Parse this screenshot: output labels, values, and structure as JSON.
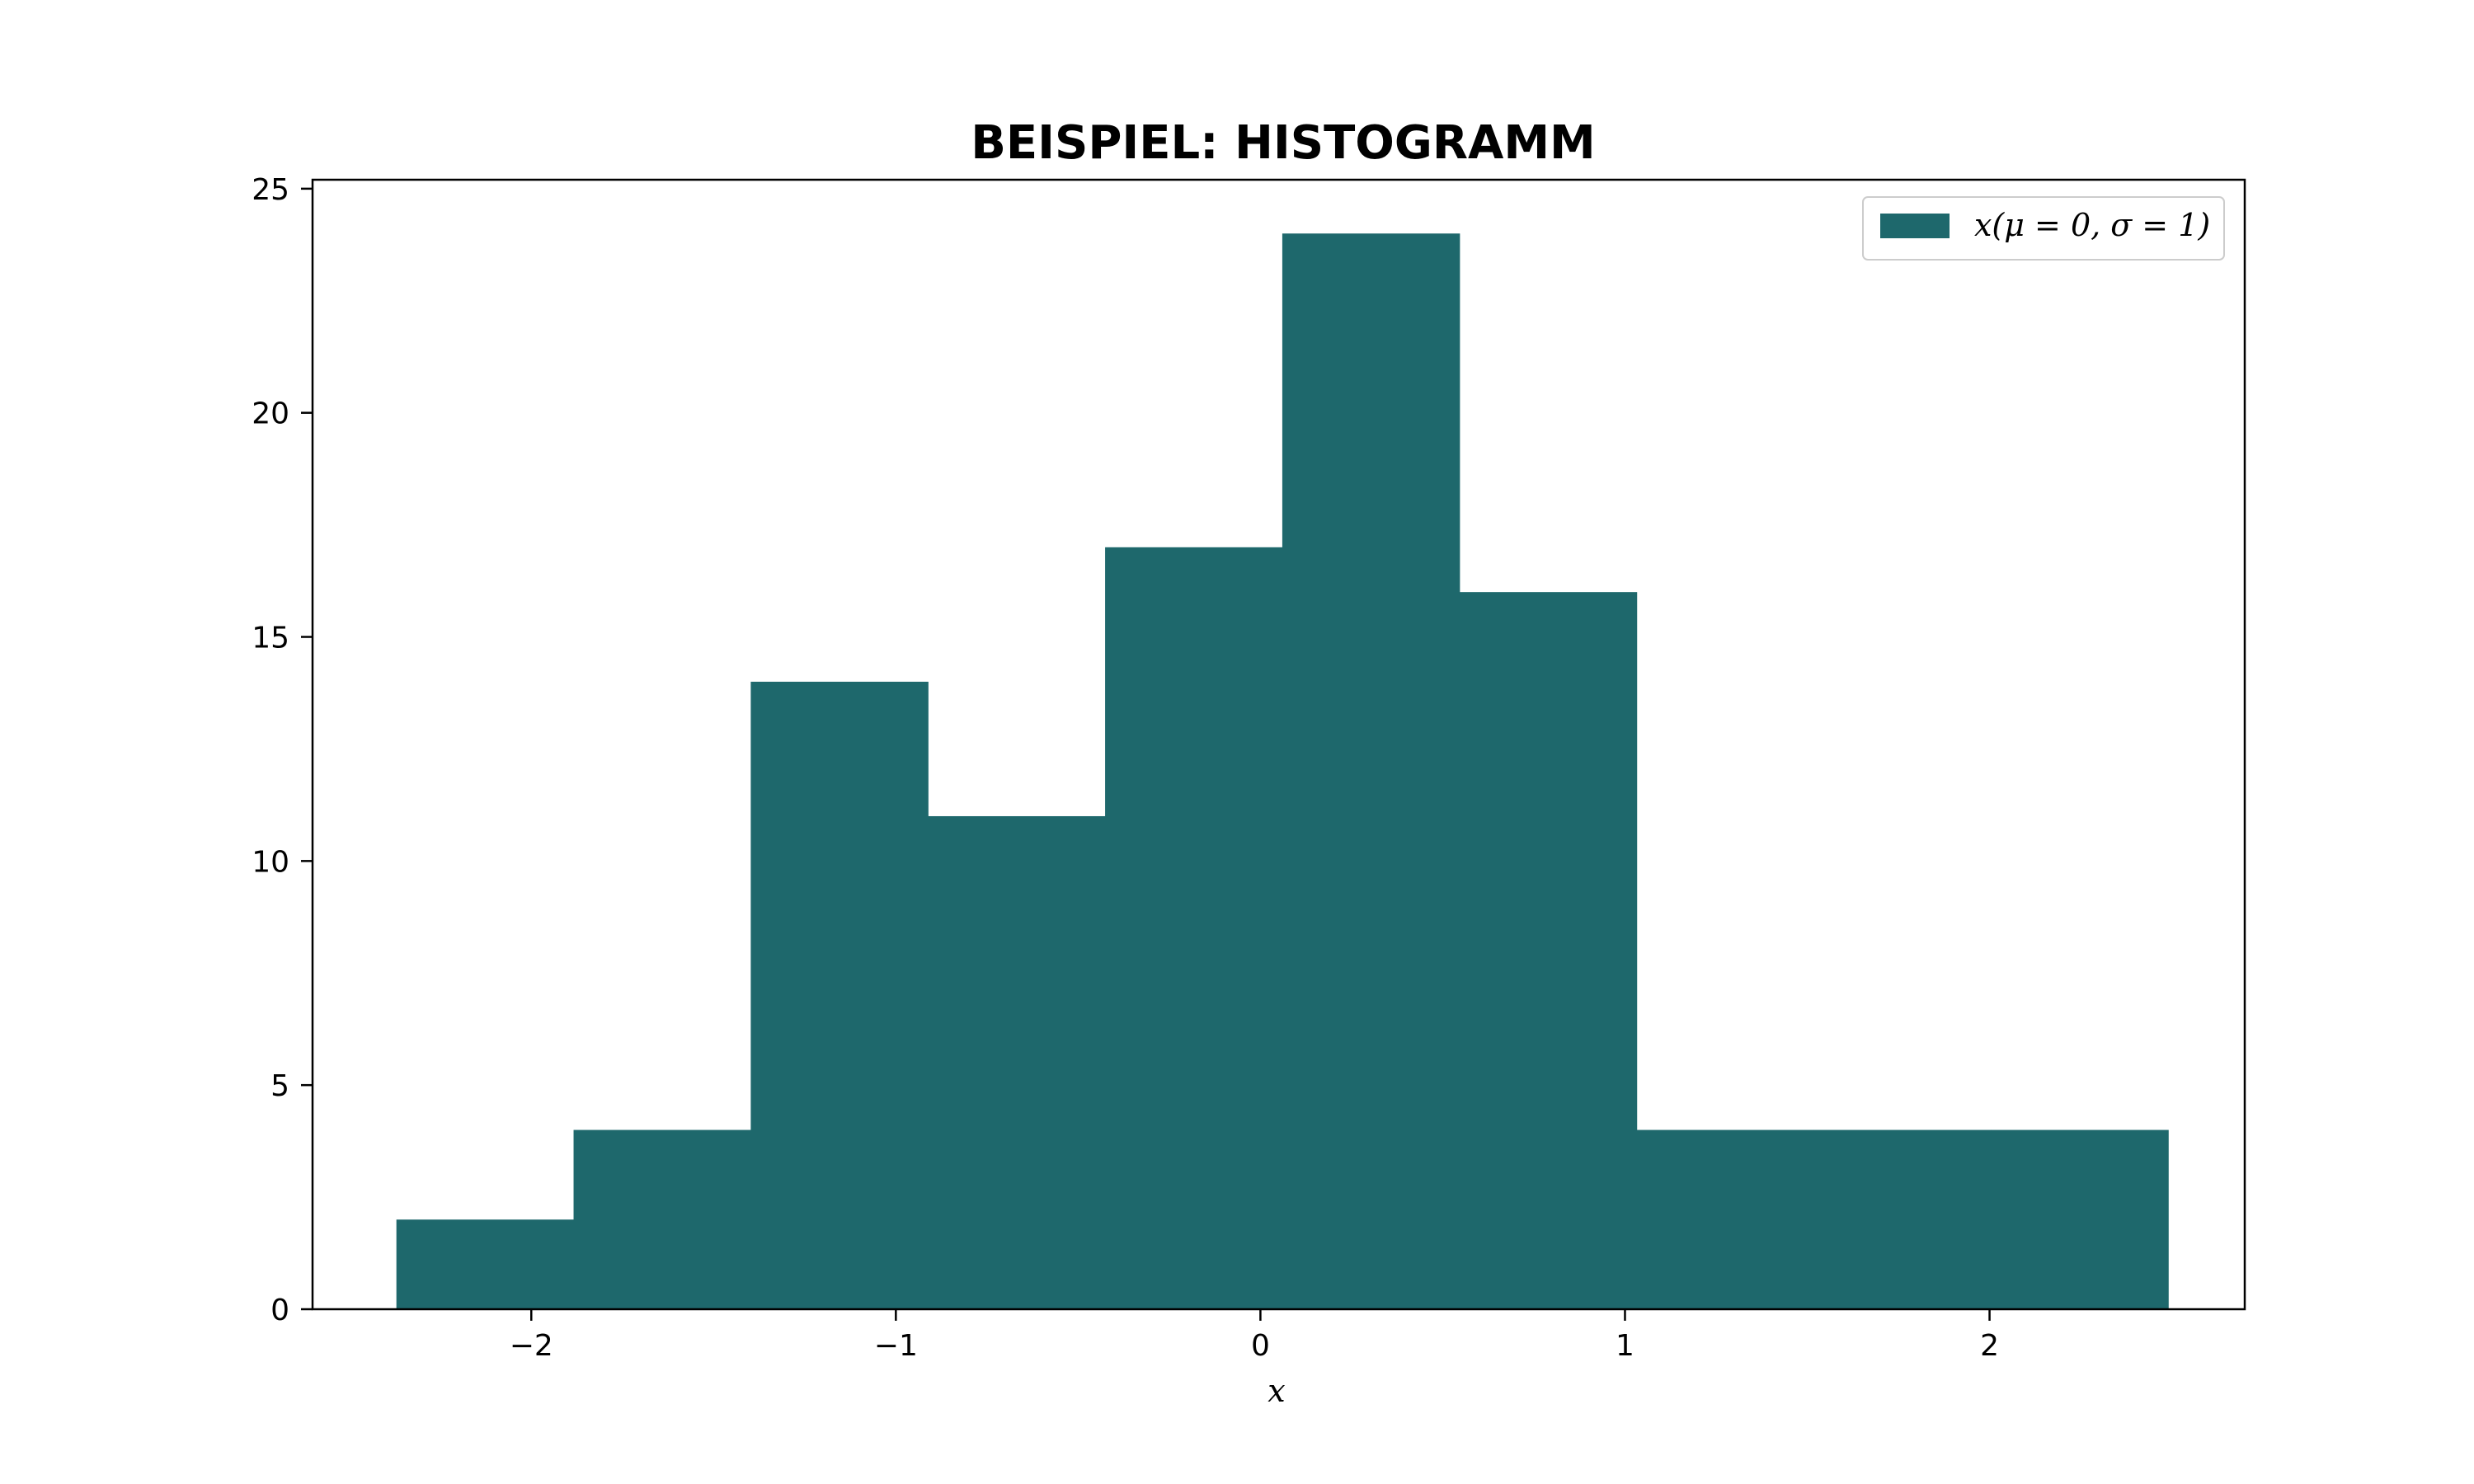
{
  "chart_data": {
    "type": "bar",
    "histogram": true,
    "title": "BEISPIEL: HISTOGRAMM",
    "xlabel": "x",
    "ylabel": "",
    "xlim": [
      -2.6,
      2.7
    ],
    "ylim": [
      0,
      25.2
    ],
    "bin_edges": [
      -2.37,
      -1.884,
      -1.398,
      -0.912,
      -0.426,
      0.06,
      0.546,
      1.032,
      1.518,
      2.004,
      2.49
    ],
    "series": [
      {
        "name": "x(μ = 0, σ = 1)",
        "color": "#1e686c",
        "values": [
          2,
          4,
          14,
          11,
          17,
          24,
          16,
          4,
          4,
          4
        ]
      }
    ],
    "x_ticks": [
      {
        "value": -2,
        "label": "−2"
      },
      {
        "value": -1,
        "label": "−1"
      },
      {
        "value": 0,
        "label": "0"
      },
      {
        "value": 1,
        "label": "1"
      },
      {
        "value": 2,
        "label": "2"
      }
    ],
    "y_ticks": [
      {
        "value": 0,
        "label": "0"
      },
      {
        "value": 5,
        "label": "5"
      },
      {
        "value": 10,
        "label": "10"
      },
      {
        "value": 15,
        "label": "15"
      },
      {
        "value": 20,
        "label": "20"
      },
      {
        "value": 25,
        "label": "25"
      }
    ],
    "grid": false,
    "legend": "top-right"
  }
}
